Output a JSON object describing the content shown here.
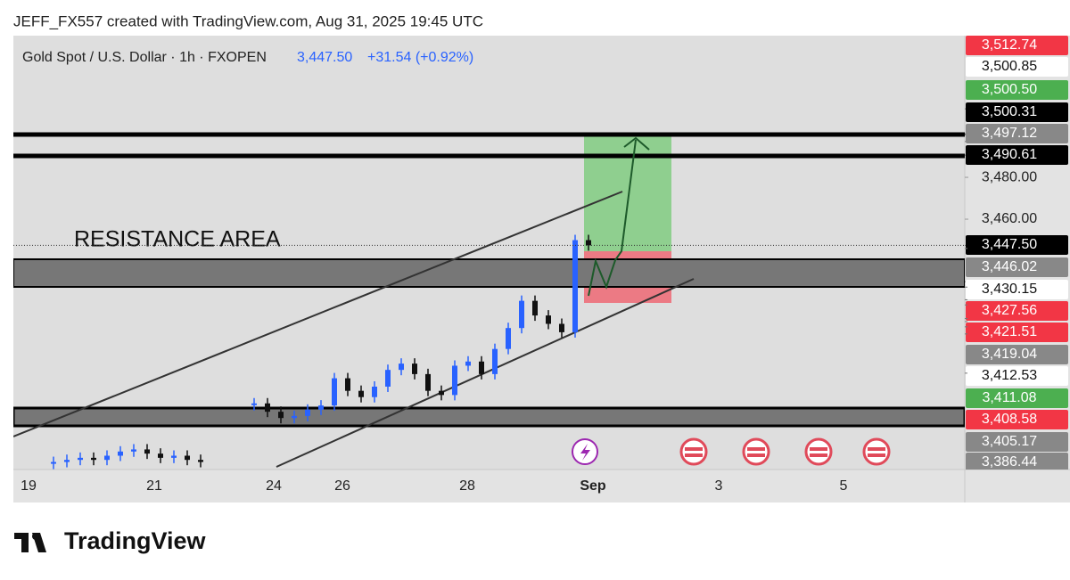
{
  "header": {
    "caption": "JEFF_FX557 created with TradingView.com, Aug 31, 2025 19:45 UTC"
  },
  "chart_data": {
    "type": "candlestick",
    "symbol": "Gold Spot / U.S. Dollar · 1h · FXOPEN",
    "last_price": {
      "value": 3447.5,
      "label": "3,447.50"
    },
    "change": "+31.54 (+0.92%)",
    "annotation": "RESISTANCE AREA",
    "up_color": "#2962ff",
    "down_color": "#111111",
    "close": [
      3344,
      3345,
      3346,
      3345,
      3347,
      3349,
      3350,
      3348,
      3346,
      3347,
      3345,
      3344,
      null,
      null,
      null,
      3372,
      3368,
      3365,
      3366,
      3369,
      3371,
      3384,
      3378,
      3375,
      3380,
      3388,
      3391,
      3386,
      3378,
      3376,
      3390,
      3392,
      3386,
      3398,
      3408,
      3421,
      3414,
      3410,
      3406,
      3450,
      3447.5
    ],
    "ylim": [
      3340.4,
      3547.7
    ],
    "yticks": [
      {
        "value": 3480,
        "label": "3,480.00"
      },
      {
        "value": 3460,
        "label": "3,460.00"
      }
    ],
    "categories": [
      "19",
      "21",
      "24",
      "26",
      "28",
      "Sep",
      "3",
      "5"
    ],
    "price_tags": [
      {
        "value": 3512.74,
        "label": "3,512.74",
        "color": "#f23645"
      },
      {
        "value": 3500.85,
        "label": "3,500.85",
        "color": "#ffffff"
      },
      {
        "value": 3500.5,
        "label": "3,500.50",
        "color": "#4caf50"
      },
      {
        "value": 3500.31,
        "label": "3,500.31",
        "color": "#000000"
      },
      {
        "value": 3497.12,
        "label": "3,497.12",
        "color": "#888888"
      },
      {
        "value": 3490.61,
        "label": "3,490.61",
        "color": "#000000"
      },
      {
        "value": 3447.5,
        "label": "3,447.50",
        "color": "#000000"
      },
      {
        "value": 3446.02,
        "label": "3,446.02",
        "color": "#888888"
      },
      {
        "value": 3430.15,
        "label": "3,430.15",
        "color": "#ffffff"
      },
      {
        "value": 3427.56,
        "label": "3,427.56",
        "color": "#f23645"
      },
      {
        "value": 3421.51,
        "label": "3,421.51",
        "color": "#f23645"
      },
      {
        "value": 3419.04,
        "label": "3,419.04",
        "color": "#888888"
      },
      {
        "value": 3412.53,
        "label": "3,412.53",
        "color": "#ffffff"
      },
      {
        "value": 3411.08,
        "label": "3,411.08",
        "color": "#4caf50"
      },
      {
        "value": 3408.58,
        "label": "3,408.58",
        "color": "#f23645"
      },
      {
        "value": 3405.17,
        "label": "3,405.17",
        "color": "#888888"
      },
      {
        "value": 3386.44,
        "label": "3,386.44",
        "color": "#888888"
      }
    ]
  },
  "footer": {
    "brand": "TradingView"
  }
}
